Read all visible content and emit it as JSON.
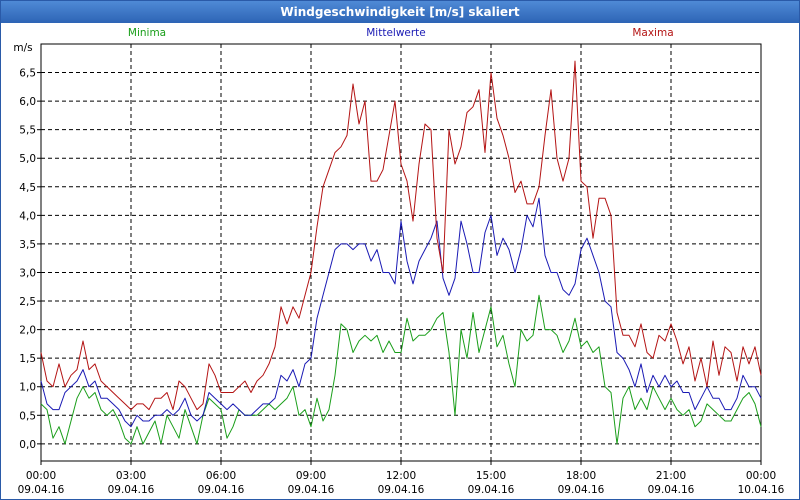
{
  "window": {
    "title": "Windgeschwindigkeit [m/s] skaliert"
  },
  "chart_data": {
    "type": "line",
    "title": "Windgeschwindigkeit [m/s] skaliert",
    "ylabel": "m/s",
    "ylim": [
      -0.3,
      7.0
    ],
    "yticks": [
      0.0,
      0.5,
      1.0,
      1.5,
      2.0,
      2.5,
      3.0,
      3.5,
      4.0,
      4.5,
      5.0,
      5.5,
      6.0,
      6.5
    ],
    "ytick_labels": [
      "0,0",
      "0,5",
      "1,0",
      "1,5",
      "2,0",
      "2,5",
      "3,0",
      "3,5",
      "4,0",
      "4,5",
      "5,0",
      "5,5",
      "6,0",
      "6,5"
    ],
    "xlim": [
      0,
      24
    ],
    "xticks": [
      0,
      3,
      6,
      9,
      12,
      15,
      18,
      21,
      24
    ],
    "xtick_labels": [
      {
        "time": "00:00",
        "date": "09.04.16"
      },
      {
        "time": "03:00",
        "date": "09.04.16"
      },
      {
        "time": "06:00",
        "date": "09.04.16"
      },
      {
        "time": "09:00",
        "date": "09.04.16"
      },
      {
        "time": "12:00",
        "date": "09.04.16"
      },
      {
        "time": "15:00",
        "date": "09.04.16"
      },
      {
        "time": "18:00",
        "date": "09.04.16"
      },
      {
        "time": "21:00",
        "date": "09.04.16"
      },
      {
        "time": "00:00",
        "date": "10.04.16"
      }
    ],
    "grid": true,
    "grid_style": "dashed",
    "legend_placement": "top",
    "series": [
      {
        "name": "Minima",
        "color": "#1a9e1a",
        "x": [
          0,
          0.2,
          0.4,
          0.6,
          0.8,
          1.0,
          1.2,
          1.4,
          1.6,
          1.8,
          2.0,
          2.2,
          2.4,
          2.6,
          2.8,
          3.0,
          3.2,
          3.4,
          3.6,
          3.8,
          4.0,
          4.2,
          4.4,
          4.6,
          4.8,
          5.0,
          5.2,
          5.4,
          5.6,
          5.8,
          6.0,
          6.2,
          6.4,
          6.6,
          6.8,
          7.0,
          7.2,
          7.4,
          7.6,
          7.8,
          8.0,
          8.2,
          8.4,
          8.6,
          8.8,
          9.0,
          9.2,
          9.4,
          9.6,
          9.8,
          10.0,
          10.2,
          10.4,
          10.6,
          10.8,
          11.0,
          11.2,
          11.4,
          11.6,
          11.8,
          12.0,
          12.2,
          12.4,
          12.6,
          12.8,
          13.0,
          13.2,
          13.4,
          13.6,
          13.8,
          14.0,
          14.2,
          14.4,
          14.6,
          14.8,
          15.0,
          15.2,
          15.4,
          15.6,
          15.8,
          16.0,
          16.2,
          16.4,
          16.6,
          16.8,
          17.0,
          17.2,
          17.4,
          17.6,
          17.8,
          18.0,
          18.2,
          18.4,
          18.6,
          18.8,
          19.0,
          19.2,
          19.4,
          19.6,
          19.8,
          20.0,
          20.2,
          20.4,
          20.6,
          20.8,
          21.0,
          21.2,
          21.4,
          21.6,
          21.8,
          22.0,
          22.2,
          22.4,
          22.6,
          22.8,
          23.0,
          23.2,
          23.4,
          23.6,
          23.8,
          24.0
        ],
        "values": [
          0.7,
          0.6,
          0.1,
          0.3,
          0.0,
          0.4,
          0.8,
          1.0,
          0.8,
          0.9,
          0.6,
          0.5,
          0.6,
          0.4,
          0.1,
          0.0,
          0.3,
          0.0,
          0.2,
          0.4,
          0.0,
          0.5,
          0.3,
          0.1,
          0.6,
          0.3,
          0.0,
          0.5,
          0.8,
          0.7,
          0.6,
          0.1,
          0.3,
          0.6,
          0.5,
          0.5,
          0.5,
          0.6,
          0.7,
          0.6,
          0.7,
          0.8,
          1.0,
          0.5,
          0.6,
          0.3,
          0.8,
          0.4,
          0.6,
          1.2,
          2.1,
          2.0,
          1.6,
          1.8,
          1.9,
          1.8,
          1.9,
          1.6,
          1.8,
          1.6,
          1.6,
          2.2,
          1.8,
          1.9,
          1.9,
          2.0,
          2.2,
          2.3,
          1.6,
          0.5,
          2.0,
          1.5,
          2.3,
          1.6,
          2.0,
          2.4,
          1.7,
          1.9,
          1.4,
          1.0,
          2.0,
          1.8,
          1.9,
          2.6,
          2.0,
          2.0,
          1.9,
          1.6,
          1.8,
          2.2,
          1.7,
          1.8,
          1.6,
          1.7,
          1.0,
          0.9,
          0.0,
          0.8,
          1.0,
          0.6,
          0.8,
          0.6,
          1.0,
          0.8,
          0.6,
          0.8,
          0.6,
          0.5,
          0.6,
          0.3,
          0.4,
          0.7,
          0.6,
          0.5,
          0.4,
          0.4,
          0.6,
          0.8,
          0.9,
          0.7,
          0.3
        ]
      },
      {
        "name": "Mittelwerte",
        "color": "#1a1ab4",
        "x": [
          0,
          0.2,
          0.4,
          0.6,
          0.8,
          1.0,
          1.2,
          1.4,
          1.6,
          1.8,
          2.0,
          2.2,
          2.4,
          2.6,
          2.8,
          3.0,
          3.2,
          3.4,
          3.6,
          3.8,
          4.0,
          4.2,
          4.4,
          4.6,
          4.8,
          5.0,
          5.2,
          5.4,
          5.6,
          5.8,
          6.0,
          6.2,
          6.4,
          6.6,
          6.8,
          7.0,
          7.2,
          7.4,
          7.6,
          7.8,
          8.0,
          8.2,
          8.4,
          8.6,
          8.8,
          9.0,
          9.2,
          9.4,
          9.6,
          9.8,
          10.0,
          10.2,
          10.4,
          10.6,
          10.8,
          11.0,
          11.2,
          11.4,
          11.6,
          11.8,
          12.0,
          12.2,
          12.4,
          12.6,
          12.8,
          13.0,
          13.2,
          13.4,
          13.6,
          13.8,
          14.0,
          14.2,
          14.4,
          14.6,
          14.8,
          15.0,
          15.2,
          15.4,
          15.6,
          15.8,
          16.0,
          16.2,
          16.4,
          16.6,
          16.8,
          17.0,
          17.2,
          17.4,
          17.6,
          17.8,
          18.0,
          18.2,
          18.4,
          18.6,
          18.8,
          19.0,
          19.2,
          19.4,
          19.6,
          19.8,
          20.0,
          20.2,
          20.4,
          20.6,
          20.8,
          21.0,
          21.2,
          21.4,
          21.6,
          21.8,
          22.0,
          22.2,
          22.4,
          22.6,
          22.8,
          23.0,
          23.2,
          23.4,
          23.6,
          23.8,
          24.0
        ],
        "values": [
          1.1,
          0.7,
          0.6,
          0.6,
          0.9,
          1.0,
          1.1,
          1.3,
          1.0,
          1.1,
          0.8,
          0.8,
          0.7,
          0.6,
          0.4,
          0.3,
          0.5,
          0.4,
          0.4,
          0.5,
          0.5,
          0.6,
          0.5,
          0.6,
          0.8,
          0.5,
          0.4,
          0.5,
          0.9,
          0.8,
          0.7,
          0.6,
          0.7,
          0.6,
          0.5,
          0.5,
          0.6,
          0.7,
          0.7,
          0.8,
          1.2,
          1.1,
          1.3,
          1.0,
          1.4,
          1.5,
          2.2,
          2.6,
          3.0,
          3.4,
          3.5,
          3.5,
          3.4,
          3.5,
          3.5,
          3.2,
          3.4,
          3.0,
          3.0,
          2.8,
          3.9,
          3.2,
          2.8,
          3.2,
          3.4,
          3.6,
          3.9,
          2.9,
          2.6,
          2.9,
          3.9,
          3.5,
          3.0,
          3.0,
          3.7,
          4.0,
          3.3,
          3.6,
          3.4,
          3.0,
          3.4,
          4.0,
          3.8,
          4.3,
          3.3,
          3.0,
          3.0,
          2.7,
          2.6,
          2.8,
          3.4,
          3.6,
          3.3,
          3.0,
          2.5,
          2.4,
          1.6,
          1.5,
          1.3,
          1.0,
          1.4,
          0.9,
          1.2,
          1.0,
          1.2,
          1.0,
          1.1,
          0.9,
          0.9,
          0.6,
          0.8,
          1.0,
          0.8,
          0.8,
          0.6,
          0.6,
          0.8,
          1.2,
          1.0,
          1.0,
          0.8
        ]
      },
      {
        "name": "Maxima",
        "color": "#b41414",
        "x": [
          0,
          0.2,
          0.4,
          0.6,
          0.8,
          1.0,
          1.2,
          1.4,
          1.6,
          1.8,
          2.0,
          2.2,
          2.4,
          2.6,
          2.8,
          3.0,
          3.2,
          3.4,
          3.6,
          3.8,
          4.0,
          4.2,
          4.4,
          4.6,
          4.8,
          5.0,
          5.2,
          5.4,
          5.6,
          5.8,
          6.0,
          6.2,
          6.4,
          6.6,
          6.8,
          7.0,
          7.2,
          7.4,
          7.6,
          7.8,
          8.0,
          8.2,
          8.4,
          8.6,
          8.8,
          9.0,
          9.2,
          9.4,
          9.6,
          9.8,
          10.0,
          10.2,
          10.4,
          10.6,
          10.8,
          11.0,
          11.2,
          11.4,
          11.6,
          11.8,
          12.0,
          12.2,
          12.4,
          12.6,
          12.8,
          13.0,
          13.2,
          13.4,
          13.6,
          13.8,
          14.0,
          14.2,
          14.4,
          14.6,
          14.8,
          15.0,
          15.2,
          15.4,
          15.6,
          15.8,
          16.0,
          16.2,
          16.4,
          16.6,
          16.8,
          17.0,
          17.2,
          17.4,
          17.6,
          17.8,
          18.0,
          18.2,
          18.4,
          18.6,
          18.8,
          19.0,
          19.2,
          19.4,
          19.6,
          19.8,
          20.0,
          20.2,
          20.4,
          20.6,
          20.8,
          21.0,
          21.2,
          21.4,
          21.6,
          21.8,
          22.0,
          22.2,
          22.4,
          22.6,
          22.8,
          23.0,
          23.2,
          23.4,
          23.6,
          23.8,
          24.0
        ],
        "values": [
          1.6,
          1.1,
          1.0,
          1.4,
          1.0,
          1.2,
          1.3,
          1.8,
          1.3,
          1.4,
          1.1,
          1.0,
          0.9,
          0.8,
          0.7,
          0.6,
          0.7,
          0.7,
          0.6,
          0.8,
          0.8,
          0.9,
          0.6,
          1.1,
          1.0,
          0.8,
          0.6,
          0.7,
          1.4,
          1.2,
          0.9,
          0.9,
          0.9,
          1.0,
          1.1,
          0.9,
          1.1,
          1.2,
          1.4,
          1.7,
          2.4,
          2.1,
          2.4,
          2.2,
          2.6,
          3.0,
          3.8,
          4.5,
          4.8,
          5.1,
          5.2,
          5.4,
          6.3,
          5.6,
          6.0,
          4.6,
          4.6,
          4.8,
          5.4,
          6.0,
          4.9,
          4.6,
          3.9,
          4.9,
          5.6,
          5.5,
          3.6,
          3.0,
          5.5,
          4.9,
          5.2,
          5.8,
          5.9,
          6.2,
          5.1,
          6.5,
          5.7,
          5.4,
          5.0,
          4.4,
          4.6,
          4.2,
          4.2,
          4.5,
          5.4,
          6.2,
          5.0,
          4.6,
          5.0,
          6.7,
          4.6,
          4.5,
          3.6,
          4.3,
          4.3,
          4.0,
          2.3,
          1.9,
          1.9,
          1.7,
          2.1,
          1.6,
          1.5,
          1.9,
          1.8,
          2.1,
          1.8,
          1.4,
          1.7,
          1.1,
          1.5,
          1.0,
          1.8,
          1.2,
          1.7,
          1.6,
          1.1,
          1.7,
          1.4,
          1.7,
          1.2
        ]
      }
    ]
  }
}
